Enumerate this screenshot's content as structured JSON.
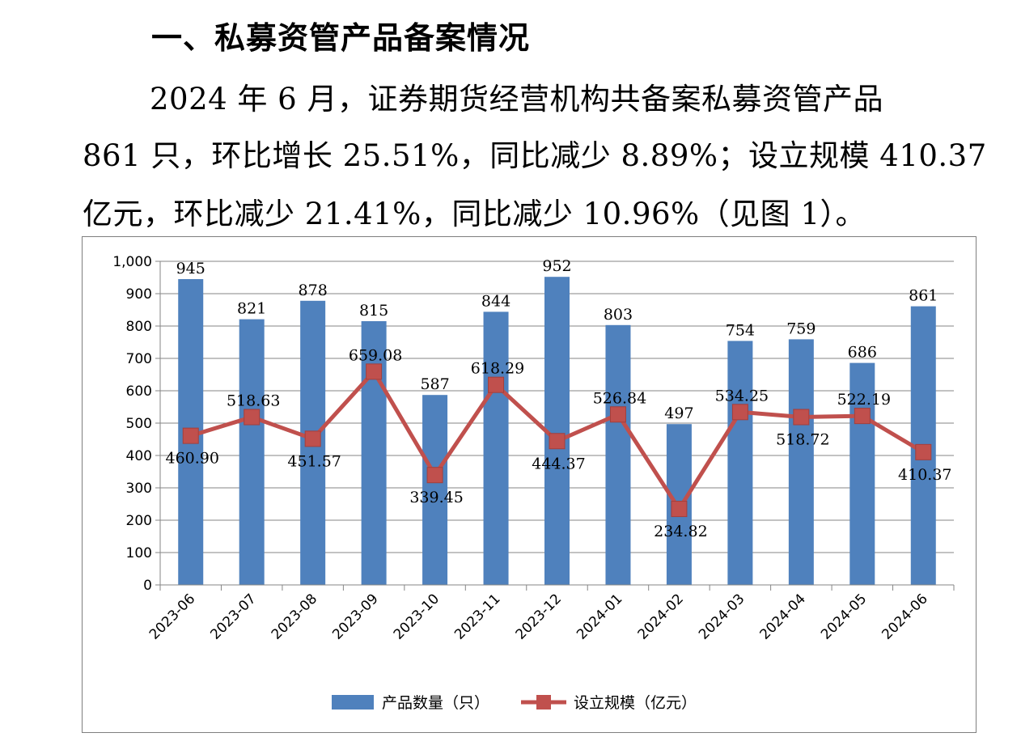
{
  "heading": "一、私募资管产品备案情况",
  "paragraph": {
    "line1": "2024 年 6 月，证券期货经营机构共备案私募资管产品",
    "line2": "861 只，环比增长 25.51%，同比减少 8.89%；设立规模 410.37",
    "line3": "亿元，环比减少 21.41%，同比减少 10.96%（见图 1）。"
  },
  "chart_data": {
    "type": "bar+line",
    "categories": [
      "2023-06",
      "2023-07",
      "2023-08",
      "2023-09",
      "2023-10",
      "2023-11",
      "2023-12",
      "2024-01",
      "2024-02",
      "2024-03",
      "2024-04",
      "2024-05",
      "2024-06"
    ],
    "series": [
      {
        "name": "产品数量（只）",
        "type": "bar",
        "color": "#4f81bd",
        "values": [
          945,
          821,
          878,
          815,
          587,
          844,
          952,
          803,
          497,
          754,
          759,
          686,
          861
        ],
        "labels": [
          "945",
          "821",
          "878",
          "815",
          "587",
          "844",
          "952",
          "803",
          "497",
          "754",
          "759",
          "686",
          "861"
        ]
      },
      {
        "name": "设立规模（亿元）",
        "type": "line",
        "color": "#c0504d",
        "values": [
          460.9,
          518.63,
          451.57,
          659.08,
          339.45,
          618.29,
          444.37,
          526.84,
          234.82,
          534.25,
          518.72,
          522.19,
          410.37
        ],
        "labels": [
          "460.90",
          "518.63",
          "451.57",
          "659.08",
          "339.45",
          "618.29",
          "444.37",
          "526.84",
          "234.82",
          "534.25",
          "518.72",
          "522.19",
          "410.37"
        ],
        "label_position": [
          "below",
          "above",
          "below",
          "above",
          "below",
          "above",
          "below",
          "above",
          "below",
          "above",
          "below",
          "above",
          "below"
        ]
      }
    ],
    "y_ticks": [
      "0",
      "100",
      "200",
      "300",
      "400",
      "500",
      "600",
      "700",
      "800",
      "900",
      "1,000"
    ],
    "ylim": [
      0,
      1000
    ],
    "grid": true,
    "legend": "bottom"
  }
}
